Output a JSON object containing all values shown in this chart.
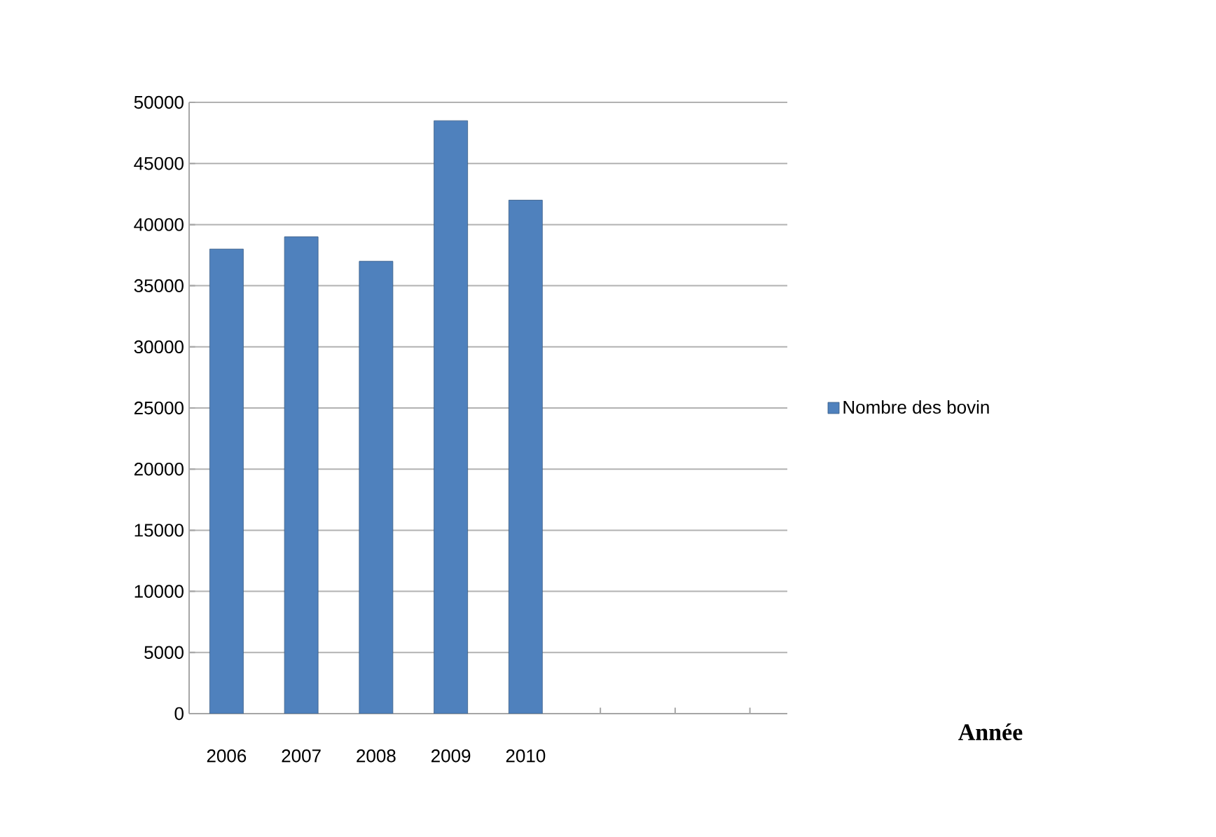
{
  "chart_data": {
    "type": "bar",
    "annotations": [
      "Année"
    ],
    "categories": [
      "2006",
      "2007",
      "2008",
      "2009",
      "2010",
      null,
      null,
      null
    ],
    "series": [
      {
        "name": "Nombre des bovin",
        "color": "#4f81bd",
        "values": [
          38000,
          39000,
          37000,
          48500,
          42000,
          null,
          null,
          null
        ]
      }
    ],
    "ylim": [
      0,
      50000
    ],
    "yticks": [
      0,
      5000,
      10000,
      15000,
      20000,
      25000,
      30000,
      35000,
      40000,
      45000,
      50000
    ],
    "grid": "y",
    "legend": "right"
  }
}
